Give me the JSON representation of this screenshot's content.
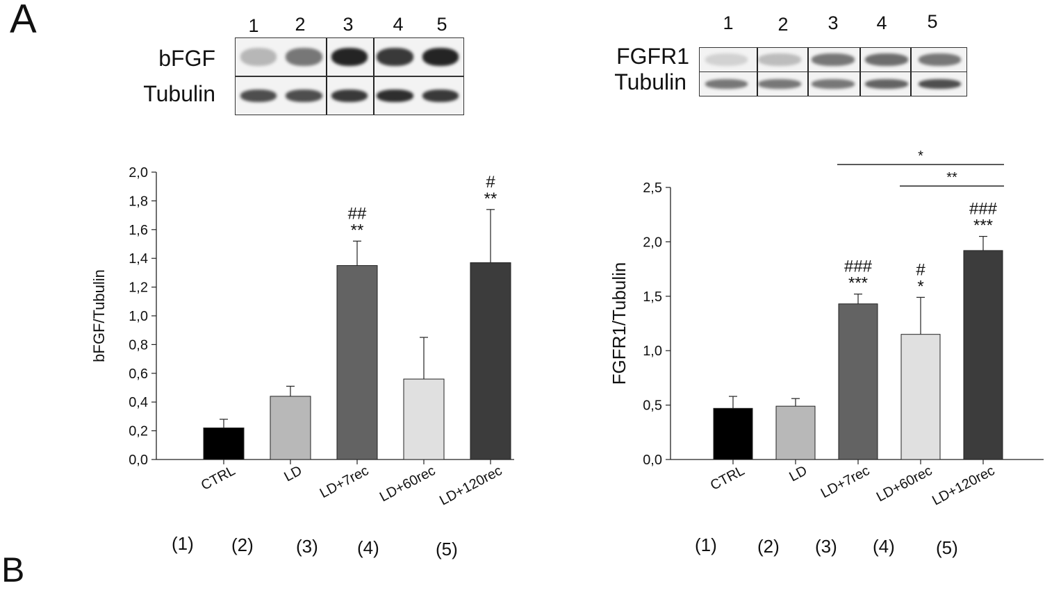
{
  "panel_letter": "A",
  "panel_letter_b": "B",
  "blot_left": {
    "lanes": [
      "1",
      "2",
      "3",
      "4",
      "5"
    ],
    "rows": [
      {
        "label": "bFGF",
        "intensities": [
          0.25,
          0.55,
          0.95,
          0.85,
          0.95
        ]
      },
      {
        "label": "Tubulin",
        "intensities": [
          0.75,
          0.75,
          0.85,
          0.9,
          0.85
        ]
      }
    ]
  },
  "blot_right": {
    "lanes": [
      "1",
      "2",
      "3",
      "4",
      "5"
    ],
    "rows": [
      {
        "label": "FGFR1",
        "intensities": [
          0.12,
          0.22,
          0.55,
          0.6,
          0.55
        ]
      },
      {
        "label": "Tubulin",
        "intensities": [
          0.55,
          0.55,
          0.55,
          0.65,
          0.75
        ]
      }
    ]
  },
  "lane_codes": [
    "(1)",
    "(2)",
    "(3)",
    "(4)",
    "(5)"
  ],
  "chart_data": [
    {
      "type": "bar",
      "ylabel": "bFGF/Tubulin",
      "ylim": [
        0,
        2.0
      ],
      "yticks": [
        "0,0",
        "0,2",
        "0,4",
        "0,6",
        "0,8",
        "1,0",
        "1,2",
        "1,4",
        "1,6",
        "1,8",
        "2,0"
      ],
      "categories": [
        "CTRL",
        "LD",
        "LD+7rec",
        "LD+60rec",
        "LD+120rec"
      ],
      "values": [
        0.22,
        0.44,
        1.35,
        0.56,
        1.37
      ],
      "errors": [
        0.06,
        0.07,
        0.17,
        0.29,
        0.37
      ],
      "colors": [
        "#000000",
        "#b8b8b8",
        "#636363",
        "#e0e0e0",
        "#3c3c3c"
      ],
      "annotations": [
        {
          "bar": 2,
          "lines": [
            "##",
            "**"
          ]
        },
        {
          "bar": 4,
          "lines": [
            "#",
            "**"
          ]
        }
      ],
      "brackets": []
    },
    {
      "type": "bar",
      "ylabel": "FGFR1/Tubulin",
      "ylim": [
        0,
        2.5
      ],
      "yticks": [
        "0,0",
        "0,5",
        "1,0",
        "1,5",
        "2,0",
        "2,5"
      ],
      "categories": [
        "CTRL",
        "LD",
        "LD+7rec",
        "LD+60rec",
        "LD+120rec"
      ],
      "values": [
        0.47,
        0.49,
        1.43,
        1.15,
        1.92
      ],
      "errors": [
        0.11,
        0.07,
        0.09,
        0.34,
        0.13
      ],
      "colors": [
        "#000000",
        "#b8b8b8",
        "#636363",
        "#e0e0e0",
        "#3c3c3c"
      ],
      "annotations": [
        {
          "bar": 2,
          "lines": [
            "###",
            "***"
          ]
        },
        {
          "bar": 3,
          "lines": [
            "#",
            "*"
          ]
        },
        {
          "bar": 4,
          "lines": [
            "###",
            "***"
          ]
        }
      ],
      "brackets": [
        {
          "from": 2,
          "to": 4,
          "label": "*"
        },
        {
          "from": 3,
          "to": 4,
          "label": "**"
        }
      ]
    }
  ]
}
